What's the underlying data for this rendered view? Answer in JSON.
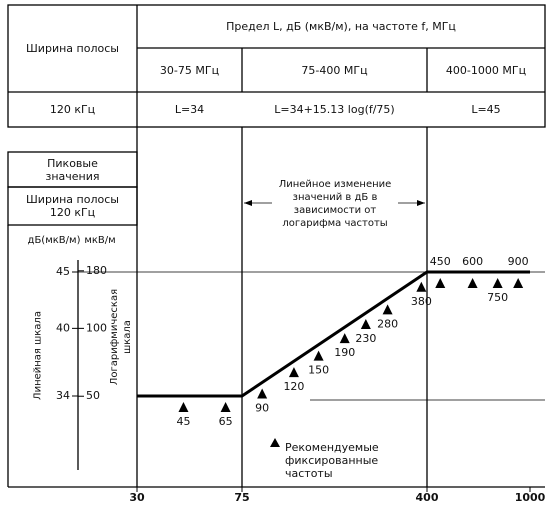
{
  "table": {
    "bandwidth_header": "Ширина полосы",
    "limit_header": "Предел L, дБ (мкВ/м), на частоте f, МГц",
    "ranges": [
      "30-75 МГц",
      "75-400 МГц",
      "400-1000 МГц"
    ],
    "bandwidth": "120 кГц",
    "formulas": [
      "L=34",
      "L=34+15.13 log(f/75)",
      "L=45"
    ]
  },
  "chart": {
    "peak_label": "Пиковые значения",
    "bandwidth_label": "Ширина полосы 120 кГц",
    "db_unit": "дБ(мкВ/м)",
    "uv_unit": "мкВ/м",
    "db_ticks": [
      34,
      40,
      45
    ],
    "uv_ticks": [
      50,
      100,
      180
    ],
    "linear_scale": "Линейная шкала",
    "log_scale": "Логарифмическая шкала",
    "annotation": "Линейное изменение значений в дБ в зависимости от логарифма частоты",
    "x_ticks": [
      30,
      75,
      400,
      1000
    ],
    "limit_db": [
      34,
      45
    ],
    "frequencies": [
      45,
      65,
      90,
      120,
      150,
      190,
      230,
      280,
      380,
      450,
      600,
      750,
      900
    ],
    "legend": "Рекомендуемые фиксированные частоты"
  }
}
